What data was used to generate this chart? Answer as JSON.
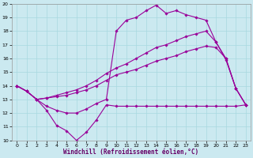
{
  "xlabel": "Windchill (Refroidissement éolien,°C)",
  "bg_color": "#cbe9f0",
  "line_color": "#990099",
  "grid_color": "#a8d8e0",
  "xlim_min": -0.5,
  "xlim_max": 23.5,
  "ylim_min": 10,
  "ylim_max": 20,
  "yticks": [
    10,
    11,
    12,
    13,
    14,
    15,
    16,
    17,
    18,
    19,
    20
  ],
  "xticks": [
    0,
    1,
    2,
    3,
    4,
    5,
    6,
    7,
    8,
    9,
    10,
    11,
    12,
    13,
    14,
    15,
    16,
    17,
    18,
    19,
    20,
    21,
    22,
    23
  ],
  "s1_x": [
    0,
    1,
    2,
    3,
    4,
    5,
    6,
    7,
    8,
    9,
    10,
    11,
    12,
    13,
    14,
    15,
    16,
    17,
    18,
    19,
    20,
    21,
    22,
    23
  ],
  "s1_y": [
    14.0,
    13.6,
    13.0,
    12.2,
    11.1,
    10.7,
    10.0,
    10.6,
    11.5,
    12.6,
    12.5,
    12.5,
    12.5,
    12.5,
    12.5,
    12.5,
    12.5,
    12.5,
    12.5,
    12.5,
    12.5,
    12.5,
    12.5,
    12.6
  ],
  "s2_x": [
    0,
    1,
    2,
    3,
    4,
    5,
    6,
    7,
    8,
    9,
    10,
    11,
    12,
    13,
    14,
    15,
    16,
    17,
    18,
    19,
    20,
    21,
    22,
    23
  ],
  "s2_y": [
    14.0,
    13.6,
    13.0,
    13.1,
    13.2,
    13.3,
    13.5,
    13.7,
    14.0,
    14.4,
    14.8,
    15.0,
    15.2,
    15.5,
    15.8,
    16.0,
    16.2,
    16.5,
    16.7,
    16.9,
    16.8,
    16.0,
    13.8,
    12.6
  ],
  "s3_x": [
    0,
    1,
    2,
    3,
    4,
    5,
    6,
    7,
    8,
    9,
    10,
    11,
    12,
    13,
    14,
    15,
    16,
    17,
    18,
    19,
    20,
    21,
    22,
    23
  ],
  "s3_y": [
    14.0,
    13.6,
    13.0,
    13.1,
    13.3,
    13.5,
    13.7,
    14.0,
    14.4,
    14.9,
    15.3,
    15.6,
    16.0,
    16.4,
    16.8,
    17.0,
    17.3,
    17.6,
    17.8,
    18.0,
    17.2,
    16.0,
    13.8,
    12.6
  ],
  "s4_x": [
    0,
    1,
    2,
    3,
    4,
    5,
    6,
    7,
    8,
    9,
    10,
    11,
    12,
    13,
    14,
    15,
    16,
    17,
    18,
    19,
    20,
    21,
    22,
    23
  ],
  "s4_y": [
    14.0,
    13.6,
    13.0,
    12.5,
    12.2,
    12.0,
    12.0,
    12.3,
    12.7,
    13.0,
    18.0,
    18.8,
    19.0,
    19.5,
    19.9,
    19.3,
    19.5,
    19.2,
    19.0,
    18.8,
    17.2,
    15.9,
    13.8,
    12.6
  ]
}
